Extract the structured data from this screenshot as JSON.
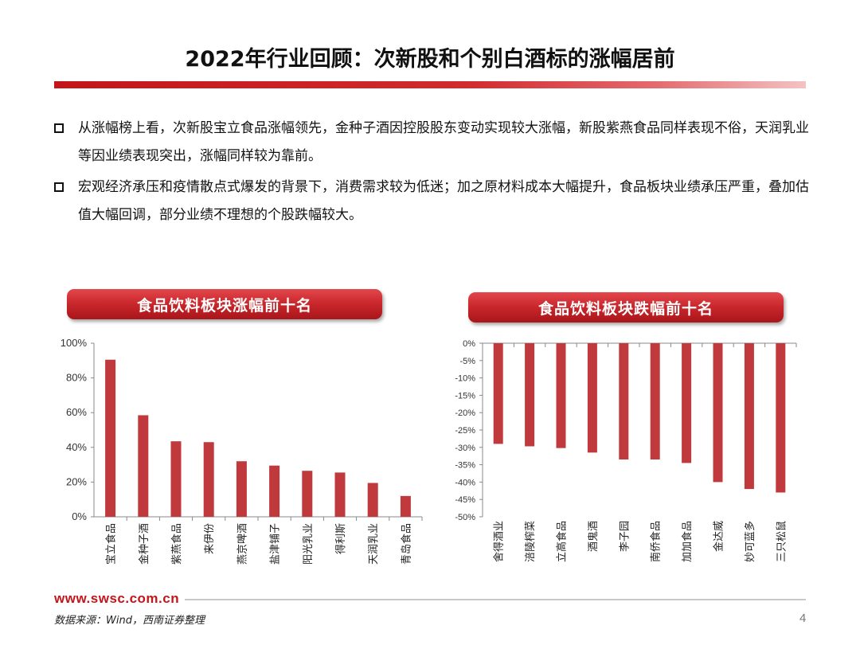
{
  "title": "2022年行业回顾：次新股和个别白酒标的涨幅居前",
  "bullets": [
    "从涨幅榜上看，次新股宝立食品涨幅领先，金种子酒因控股股东变动实现较大涨幅，新股紫燕食品同样表现不俗，天润乳业等因业绩表现突出，涨幅同样较为靠前。",
    "宏观经济承压和疫情散点式爆发的背景下，消费需求较为低迷；加之原材料成本大幅提升，食品板块业绩承压严重，叠加估值大幅回调，部分业绩不理想的个股跌幅较大。"
  ],
  "colors": {
    "accent": "#c3151b",
    "bar": "#c0393d"
  },
  "chart_data": [
    {
      "type": "bar",
      "title": "食品饮料板块涨幅前十名",
      "categories": [
        "宝立食品",
        "金种子酒",
        "紫燕食品",
        "来伊份",
        "燕京啤酒",
        "盐津铺子",
        "阳光乳业",
        "得利斯",
        "天润乳业",
        "青岛食品"
      ],
      "values": [
        90.5,
        58.5,
        43.5,
        43,
        32,
        29.5,
        26.5,
        25.5,
        19.5,
        12
      ],
      "ylim": [
        0,
        100
      ],
      "yticks": [
        "0%",
        "20%",
        "40%",
        "60%",
        "80%",
        "100%"
      ],
      "ytick_values": [
        0,
        20,
        40,
        60,
        80,
        100
      ],
      "unit": "%"
    },
    {
      "type": "bar",
      "title": "食品饮料板块跌幅前十名",
      "categories": [
        "舍得酒业",
        "涪陵榨菜",
        "立高食品",
        "酒鬼酒",
        "李子园",
        "南侨食品",
        "加加食品",
        "金达威",
        "妙可蓝多",
        "三只松鼠"
      ],
      "values": [
        -29,
        -29.7,
        -30.2,
        -31.5,
        -33.5,
        -33.5,
        -34.5,
        -40,
        -42,
        -43
      ],
      "ylim": [
        -50,
        0
      ],
      "yticks": [
        "0%",
        "-5%",
        "-10%",
        "-15%",
        "-20%",
        "-25%",
        "-30%",
        "-35%",
        "-40%",
        "-45%",
        "-50%"
      ],
      "ytick_values": [
        0,
        -5,
        -10,
        -15,
        -20,
        -25,
        -30,
        -35,
        -40,
        -45,
        -50
      ],
      "unit": "%"
    }
  ],
  "footer": {
    "url": "www.swsc.com.cn",
    "source": "数据来源：Wind，西南证券整理",
    "page": "4"
  }
}
